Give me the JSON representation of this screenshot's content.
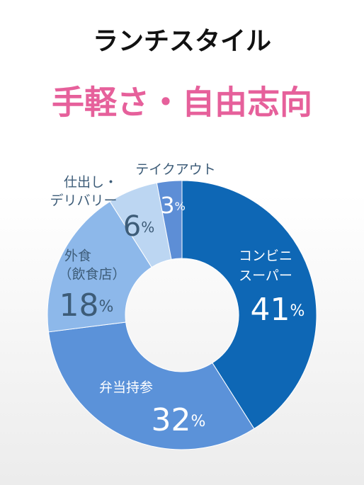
{
  "chart_data": {
    "type": "donut",
    "title": "ランチスタイル",
    "subtitle": "手軽さ・自由志向",
    "categories": [
      [
        "コンビニ",
        "スーパー"
      ],
      [
        "弁当持参"
      ],
      [
        "外食",
        "（飲食店）"
      ],
      [
        "仕出し・",
        "デリバリー"
      ],
      [
        "テイクアウト"
      ]
    ],
    "values": [
      41,
      32,
      18,
      6,
      3
    ],
    "value_labels": [
      "41%",
      "32%",
      "18%",
      "6%",
      "3%"
    ],
    "colors": [
      "#0e67b5",
      "#5b92d9",
      "#8db8ea",
      "#bcd6f2",
      "#5d8ed6"
    ]
  }
}
